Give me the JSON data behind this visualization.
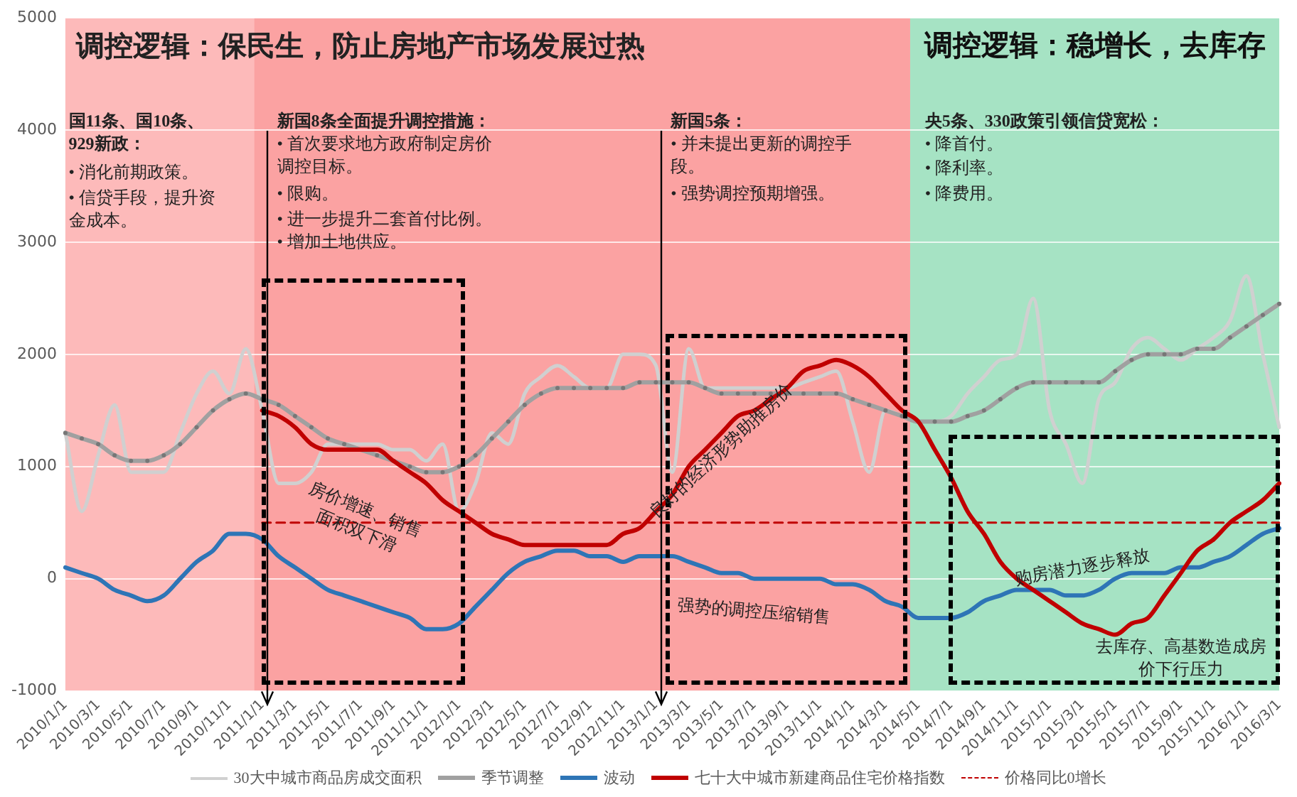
{
  "chart_data": {
    "type": "line",
    "categories": [
      "2010/1/1",
      null,
      "2010/3/1",
      null,
      "2010/5/1",
      null,
      "2010/7/1",
      null,
      "2010/9/1",
      null,
      "2010/11/1",
      null,
      "2011/1/1",
      null,
      "2011/3/1",
      null,
      "2011/5/1",
      null,
      "2011/7/1",
      null,
      "2011/9/1",
      null,
      "2011/11/1",
      null,
      "2012/1/1",
      null,
      "2012/3/1",
      null,
      "2012/5/1",
      null,
      "2012/7/1",
      null,
      "2012/9/1",
      null,
      "2012/11/1",
      null,
      "2013/1/1",
      null,
      "2013/3/1",
      null,
      "2013/5/1",
      null,
      "2013/7/1",
      null,
      "2013/9/1",
      null,
      "2013/11/1",
      null,
      "2014/1/1",
      null,
      "2014/3/1",
      null,
      "2014/5/1",
      null,
      "2014/7/1",
      null,
      "2014/9/1",
      null,
      "2014/11/1",
      null,
      "2015/1/1",
      null,
      "2015/3/1",
      null,
      "2015/5/1",
      null,
      "2015/7/1",
      null,
      "2015/9/1",
      null,
      "2015/11/1",
      null,
      "2016/1/1",
      null,
      "2016/3/1"
    ],
    "series": [
      {
        "name": "30大中城市商品房成交面积",
        "color": "#d0d0d0",
        "values": [
          1300,
          600,
          1100,
          1550,
          950,
          950,
          950,
          1300,
          1650,
          1850,
          1650,
          2050,
          1500,
          850,
          850,
          950,
          1200,
          1200,
          1200,
          1200,
          1150,
          1150,
          1050,
          1200,
          600,
          850,
          1300,
          1200,
          1650,
          1800,
          1900,
          1800,
          1700,
          1700,
          2000,
          2000,
          1900,
          950,
          2050,
          1700,
          1700,
          1700,
          1700,
          1700,
          1700,
          1750,
          1800,
          1850,
          1400,
          950,
          1500,
          1450,
          1400,
          1400,
          1450,
          1650,
          1800,
          1950,
          2000,
          2500,
          1500,
          1200,
          850,
          1600,
          1750,
          2050,
          2150,
          2050,
          1950,
          2050,
          2150,
          2300,
          2700,
          2000,
          1350
        ]
      },
      {
        "name": "季节调整",
        "color": "#a0a0a0",
        "marker": "circle",
        "values": [
          1300,
          1250,
          1200,
          1100,
          1050,
          1050,
          1100,
          1200,
          1350,
          1500,
          1600,
          1650,
          1600,
          1550,
          1450,
          1350,
          1250,
          1200,
          1150,
          1100,
          1050,
          1000,
          950,
          950,
          1000,
          1100,
          1250,
          1400,
          1550,
          1650,
          1700,
          1700,
          1700,
          1700,
          1700,
          1750,
          1750,
          1750,
          1750,
          1700,
          1650,
          1650,
          1650,
          1650,
          1650,
          1650,
          1650,
          1650,
          1600,
          1550,
          1500,
          1450,
          1400,
          1400,
          1400,
          1450,
          1500,
          1600,
          1700,
          1750,
          1750,
          1750,
          1750,
          1750,
          1850,
          1950,
          2000,
          2000,
          2000,
          2050,
          2050,
          2150,
          2250,
          2350,
          2450
        ]
      },
      {
        "name": "波动",
        "color": "#2e75b6",
        "values": [
          100,
          50,
          0,
          -100,
          -150,
          -200,
          -150,
          0,
          150,
          250,
          400,
          400,
          350,
          200,
          100,
          0,
          -100,
          -150,
          -200,
          -250,
          -300,
          -350,
          -450,
          -450,
          -400,
          -250,
          -100,
          50,
          150,
          200,
          250,
          250,
          200,
          200,
          150,
          200,
          200,
          200,
          150,
          100,
          50,
          50,
          0,
          0,
          0,
          0,
          0,
          -50,
          -50,
          -100,
          -200,
          -250,
          -350,
          -350,
          -350,
          -300,
          -200,
          -150,
          -100,
          -100,
          -100,
          -150,
          -150,
          -100,
          0,
          50,
          50,
          50,
          100,
          100,
          150,
          200,
          300,
          400,
          450
        ]
      },
      {
        "name": "七十大中城市新建商品住宅价格指数",
        "color": "#c00000",
        "values": [
          null,
          null,
          null,
          null,
          null,
          null,
          null,
          null,
          null,
          null,
          null,
          null,
          1500,
          1450,
          1350,
          1200,
          1150,
          1150,
          1150,
          1150,
          1050,
          950,
          850,
          700,
          600,
          500,
          400,
          350,
          300,
          300,
          300,
          300,
          300,
          300,
          400,
          450,
          600,
          750,
          1000,
          1150,
          1300,
          1450,
          1500,
          1600,
          1700,
          1850,
          1900,
          1950,
          1900,
          1800,
          1650,
          1500,
          1400,
          1150,
          900,
          600,
          400,
          150,
          0,
          -100,
          -200,
          -300,
          -400,
          -450,
          -500,
          -400,
          -350,
          -150,
          50,
          250,
          350,
          500,
          600,
          700,
          850
        ]
      },
      {
        "name": "价格同比0增长",
        "color": "#c00000",
        "line_style": "dashed",
        "values": [
          null,
          null,
          null,
          null,
          null,
          null,
          null,
          null,
          null,
          null,
          null,
          null,
          500,
          500,
          500,
          500,
          500,
          500,
          500,
          500,
          500,
          500,
          500,
          500,
          500,
          500,
          500,
          500,
          500,
          500,
          500,
          500,
          500,
          500,
          500,
          500,
          500,
          500,
          500,
          500,
          500,
          500,
          500,
          500,
          500,
          500,
          500,
          500,
          500,
          500,
          500,
          500,
          500,
          500,
          500,
          500,
          500,
          500,
          500,
          500,
          500,
          500,
          500,
          500,
          500,
          500,
          500,
          500,
          500,
          500,
          500,
          500,
          500,
          500,
          500
        ]
      }
    ],
    "ylim": [
      -1000,
      5000
    ],
    "yticks": [
      -1000,
      0,
      1000,
      2000,
      3000,
      4000,
      5000
    ],
    "grid": "y",
    "legend": "bottom",
    "marker": "none",
    "line_style": "solid",
    "bands": [
      {
        "axis": "x",
        "from": "2010/1/1",
        "to": "2011/1/1",
        "color": "#fdbaba"
      },
      {
        "axis": "x",
        "from": "2011/1/1",
        "to": "2014/5/1",
        "color": "#fba2a2"
      },
      {
        "axis": "x",
        "from": "2014/5/1",
        "to": "2016/3/1",
        "color": "#a6e3c4",
        "label": "调控逻辑：稳增长，去库存"
      }
    ],
    "annotations": [
      "调控逻辑：保民生，防止房地产市场发展过热",
      "国11条、国10条、929新政：",
      "• 消化前期政策。",
      "• 信贷手段，提升资金成本。",
      "新国8条全面提升调控措施：",
      "• 首次要求地方政府制定房价调控目标。",
      "• 限购。",
      "• 进一步提升二套首付比例。",
      "• 增加土地供应。",
      "新国5条：",
      "• 并未提出更新的调控手段。",
      "• 强势调控预期增强。",
      "央5条、330政策引领信贷宽松：",
      "• 降首付。",
      "• 降利率。",
      "• 降费用。",
      "房价增速、销售面积双下滑",
      "良好的经济形势助推房价",
      "强势的调控压缩销售",
      "购房潜力逐步释放",
      "去库存、高基数造成房价下行压力"
    ]
  }
}
